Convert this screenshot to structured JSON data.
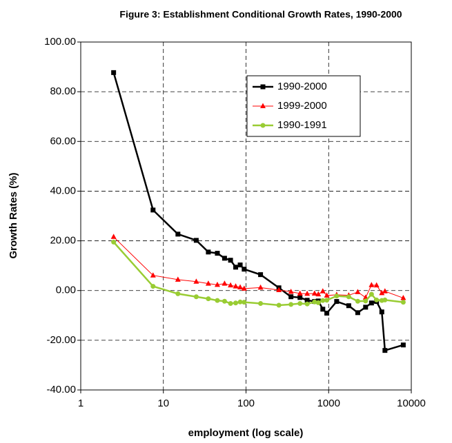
{
  "chart_data": {
    "type": "line",
    "title": "Figure 3: Establishment Conditional Growth Rates, 1990-2000",
    "x_label": "employment (log scale)",
    "y_label": "Growth Rates (%)",
    "x_scale": "log",
    "grid": true,
    "legend_position": "upper right",
    "x": [
      2.5,
      7.5,
      15,
      25,
      35,
      45,
      55,
      65,
      75,
      85,
      95,
      150,
      250,
      350,
      450,
      550,
      675,
      750,
      850,
      950,
      1250,
      1750,
      2250,
      2800,
      3300,
      3800,
      4400,
      4800,
      8000
    ],
    "series": [
      {
        "name": "1990-2000",
        "color": "#000000",
        "marker": "square",
        "values": [
          87.7,
          32.4,
          22.7,
          20.2,
          15.5,
          15,
          13,
          12.2,
          9.4,
          10.3,
          8.6,
          6.4,
          1.1,
          -2.5,
          -2.8,
          -3.9,
          -4.4,
          -4.2,
          -7.5,
          -9.1,
          -4.4,
          -6.1,
          -8.9,
          -6.7,
          -5,
          -4.4,
          -8.6,
          -24.1,
          -21.9
        ]
      },
      {
        "name": "1999-2000",
        "color": "#ff0000",
        "marker": "triangle",
        "values": [
          21.6,
          6.1,
          4.4,
          3.6,
          2.8,
          2.3,
          2.8,
          2.1,
          1.7,
          1.3,
          0.8,
          1.2,
          0.2,
          -0.5,
          -1.2,
          -1.3,
          -1.2,
          -1.5,
          -0.3,
          -2,
          -1.7,
          -1.9,
          -0.6,
          -2.8,
          2.2,
          2.1,
          -1,
          -0.3,
          -3
        ]
      },
      {
        "name": "1990-1991",
        "color": "#99cc33",
        "marker": "circle",
        "values": [
          19.5,
          1.7,
          -1.3,
          -2.5,
          -3.3,
          -4,
          -4.3,
          -5.2,
          -5,
          -4.6,
          -4.7,
          -5.2,
          -5.9,
          -5.6,
          -5.2,
          -5.4,
          -4.6,
          -4.9,
          -4,
          -3.9,
          -2.2,
          -2.5,
          -4.3,
          -4.2,
          -1.5,
          -3.8,
          -4,
          -3.8,
          -4.7
        ]
      }
    ],
    "xlim": [
      1,
      10000
    ],
    "xticks": [
      1,
      10,
      100,
      1000,
      10000
    ],
    "ylim": [
      -40,
      100
    ],
    "yticks": [
      {
        "value": -40,
        "label": "-40.00"
      },
      {
        "value": -20,
        "label": "-20.00"
      },
      {
        "value": 0,
        "label": "0.00"
      },
      {
        "value": 20,
        "label": "20.00"
      },
      {
        "value": 40,
        "label": "40.00"
      },
      {
        "value": 60,
        "label": "60.00"
      },
      {
        "value": 80,
        "label": "80.00"
      },
      {
        "value": 100,
        "label": "100.00"
      }
    ]
  }
}
